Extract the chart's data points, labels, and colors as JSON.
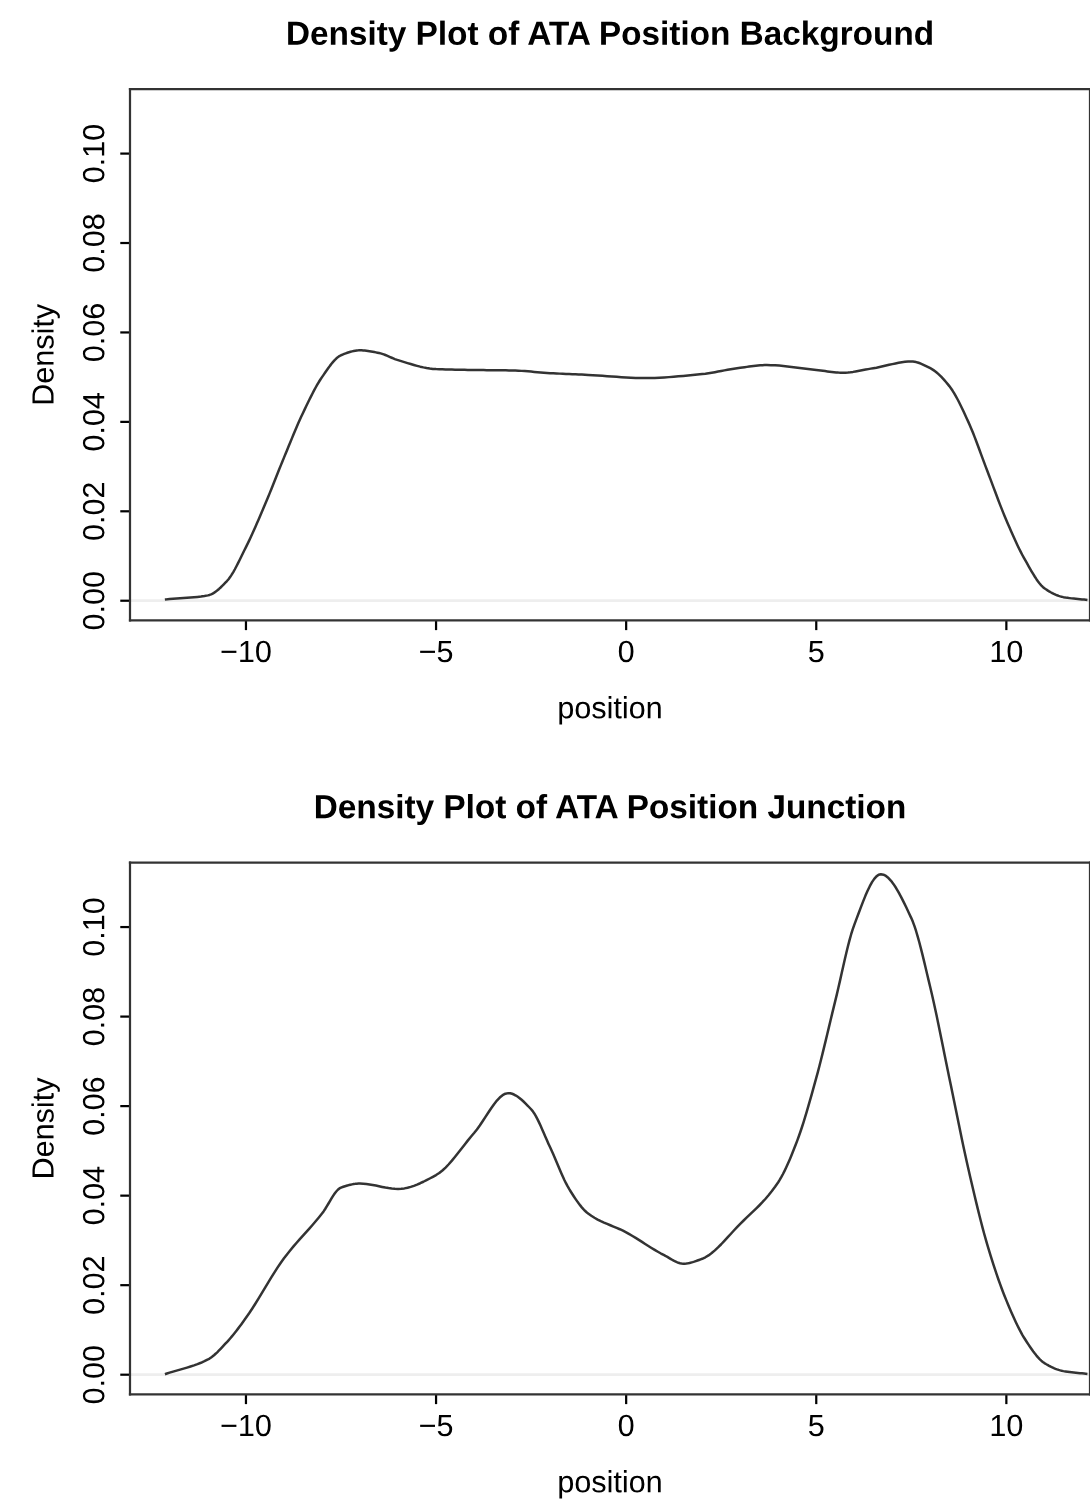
{
  "chart_data": [
    {
      "type": "line",
      "title": "Density Plot of ATA Position Background",
      "xlabel": "position",
      "ylabel": "Density",
      "x": [
        -12.1,
        -11,
        -10.5,
        -10,
        -9.5,
        -9,
        -8.5,
        -8,
        -7.5,
        -7,
        -6.5,
        -6,
        -5,
        -4,
        -3,
        -2,
        -1,
        0.5,
        2,
        3,
        3.7,
        5,
        5.7,
        6.5,
        7.5,
        8,
        8.5,
        9,
        9.5,
        10,
        10.5,
        11,
        11.5,
        12.1
      ],
      "series": [
        {
          "color": "#333333",
          "values": [
            0.0003,
            0.0012,
            0.0044,
            0.012,
            0.0215,
            0.032,
            0.042,
            0.05,
            0.0549,
            0.056,
            0.0554,
            0.0538,
            0.0518,
            0.0516,
            0.0515,
            0.0509,
            0.0505,
            0.0498,
            0.0507,
            0.0521,
            0.0527,
            0.0516,
            0.051,
            0.052,
            0.0535,
            0.052,
            0.048,
            0.04,
            0.029,
            0.018,
            0.009,
            0.0028,
            0.0008,
            0.0002
          ]
        }
      ],
      "xlim": [
        -13.05,
        12.2
      ],
      "ylim": [
        -0.0044,
        0.1144
      ],
      "xticks": [
        -10,
        -5,
        0,
        5,
        10
      ],
      "yticks": [
        {
          "value": 0,
          "label": "0.00"
        },
        {
          "value": 0.02,
          "label": "0.02"
        },
        {
          "value": 0.04,
          "label": "0.04"
        },
        {
          "value": 0.06,
          "label": "0.06"
        },
        {
          "value": 0.08,
          "label": "0.08"
        },
        {
          "value": 0.1,
          "label": "0.10"
        }
      ],
      "ref_lines": [
        {
          "axis": "y",
          "value": 0,
          "color": "#eeeeee"
        }
      ],
      "grid": false,
      "legend": false,
      "marker": "none",
      "line_style": "solid"
    },
    {
      "type": "line",
      "title": "Density Plot of ATA Position Junction",
      "xlabel": "position",
      "ylabel": "Density",
      "x": [
        -12.1,
        -11,
        -10.5,
        -10,
        -9,
        -8,
        -7.5,
        -7,
        -6,
        -5,
        -4,
        -3.1,
        -2.5,
        -2,
        -1.5,
        -1,
        0,
        1,
        1.5,
        2,
        3,
        4,
        4.5,
        5,
        5.5,
        6,
        6.7,
        7.5,
        8,
        8.5,
        9,
        9.5,
        10,
        10.5,
        11,
        11.5,
        12.1
      ],
      "series": [
        {
          "color": "#333333",
          "values": [
            0.0002,
            0.0034,
            0.0073,
            0.0127,
            0.026,
            0.036,
            0.0418,
            0.0427,
            0.0415,
            0.0446,
            0.054,
            0.0629,
            0.0593,
            0.0508,
            0.0415,
            0.036,
            0.0318,
            0.0267,
            0.0248,
            0.0259,
            0.0337,
            0.043,
            0.0523,
            0.0663,
            0.0835,
            0.1005,
            0.1118,
            0.102,
            0.0865,
            0.0663,
            0.046,
            0.029,
            0.0166,
            0.0078,
            0.0026,
            0.0008,
            0.0002
          ]
        }
      ],
      "xlim": [
        -13.05,
        12.2
      ],
      "ylim": [
        -0.0044,
        0.1144
      ],
      "xticks": [
        -10,
        -5,
        0,
        5,
        10
      ],
      "yticks": [
        {
          "value": 0,
          "label": "0.00"
        },
        {
          "value": 0.02,
          "label": "0.02"
        },
        {
          "value": 0.04,
          "label": "0.04"
        },
        {
          "value": 0.06,
          "label": "0.06"
        },
        {
          "value": 0.08,
          "label": "0.08"
        },
        {
          "value": 0.1,
          "label": "0.10"
        }
      ],
      "ref_lines": [
        {
          "axis": "y",
          "value": 0,
          "color": "#eeeeee"
        }
      ],
      "grid": false,
      "legend": false,
      "marker": "none",
      "line_style": "solid"
    }
  ]
}
